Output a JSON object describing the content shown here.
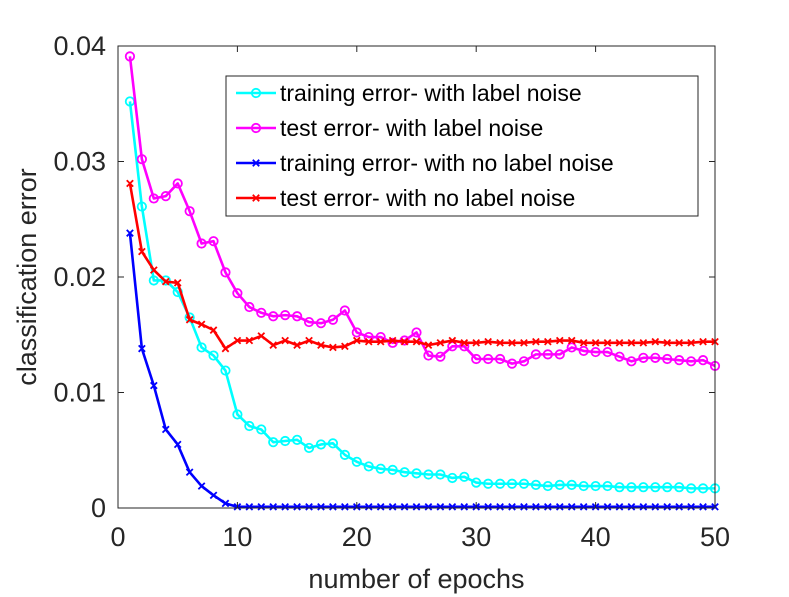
{
  "chart_data": {
    "type": "line",
    "xlabel": "number of epochs",
    "ylabel": "classification error",
    "xlim": [
      0,
      50
    ],
    "ylim": [
      0,
      0.04
    ],
    "xticks": [
      0,
      10,
      20,
      30,
      40,
      50
    ],
    "xtick_labels": [
      "0",
      "10",
      "20",
      "30",
      "40",
      "50"
    ],
    "yticks": [
      0,
      0.01,
      0.02,
      0.03,
      0.04
    ],
    "ytick_labels": [
      "0",
      "0.01",
      "0.02",
      "0.03",
      "0.04"
    ],
    "grid": false,
    "legend_position": "top-right",
    "x": [
      1,
      2,
      3,
      4,
      5,
      6,
      7,
      8,
      9,
      10,
      11,
      12,
      13,
      14,
      15,
      16,
      17,
      18,
      19,
      20,
      21,
      22,
      23,
      24,
      25,
      26,
      27,
      28,
      29,
      30,
      31,
      32,
      33,
      34,
      35,
      36,
      37,
      38,
      39,
      40,
      41,
      42,
      43,
      44,
      45,
      46,
      47,
      48,
      49,
      50
    ],
    "series": [
      {
        "name": "training error- with label noise",
        "color": "#00ffff",
        "marker": "circle",
        "values": [
          0.0352,
          0.0261,
          0.0197,
          0.0197,
          0.0187,
          0.0165,
          0.0139,
          0.0132,
          0.0119,
          0.0081,
          0.0071,
          0.0068,
          0.0057,
          0.0058,
          0.0059,
          0.0052,
          0.0055,
          0.0056,
          0.0046,
          0.004,
          0.0036,
          0.0034,
          0.0033,
          0.0031,
          0.003,
          0.0029,
          0.0029,
          0.0026,
          0.0027,
          0.0022,
          0.0021,
          0.0021,
          0.0021,
          0.0021,
          0.002,
          0.0019,
          0.002,
          0.002,
          0.0019,
          0.0019,
          0.0019,
          0.0018,
          0.0018,
          0.0018,
          0.0018,
          0.0018,
          0.0018,
          0.0017,
          0.0017,
          0.0017
        ]
      },
      {
        "name": "test error- with label noise",
        "color": "#ff00ff",
        "marker": "circle",
        "values": [
          0.0391,
          0.0302,
          0.0268,
          0.027,
          0.0281,
          0.0257,
          0.0229,
          0.0231,
          0.0204,
          0.0186,
          0.0174,
          0.0169,
          0.0166,
          0.0167,
          0.0166,
          0.0161,
          0.016,
          0.0163,
          0.0171,
          0.0152,
          0.0148,
          0.0148,
          0.0143,
          0.0145,
          0.0152,
          0.0132,
          0.0131,
          0.014,
          0.014,
          0.0129,
          0.0129,
          0.0129,
          0.0125,
          0.0127,
          0.0133,
          0.0133,
          0.0133,
          0.0139,
          0.0136,
          0.0135,
          0.0135,
          0.0131,
          0.0127,
          0.013,
          0.013,
          0.0129,
          0.0128,
          0.0127,
          0.0128,
          0.0123
        ]
      },
      {
        "name": "training error- with no label noise",
        "color": "#0000ff",
        "marker": "x",
        "values": [
          0.0238,
          0.0138,
          0.0106,
          0.0068,
          0.0055,
          0.0031,
          0.0019,
          0.0011,
          0.0004,
          0.0001,
          0.0001,
          0.0001,
          0.0001,
          0.0001,
          0.0001,
          0.0001,
          0.0001,
          0.0001,
          0.0001,
          0.0001,
          0.0001,
          0.0001,
          0.0001,
          0.0001,
          0.0001,
          0.0001,
          0.0001,
          0.0001,
          0.0001,
          0.0001,
          0.0001,
          0.0001,
          0.0001,
          0.0001,
          0.0001,
          0.0001,
          0.0001,
          0.0001,
          0.0001,
          0.0001,
          0.0001,
          0.0001,
          0.0001,
          0.0001,
          0.0001,
          0.0001,
          0.0001,
          0.0001,
          0.0001,
          0.0001
        ]
      },
      {
        "name": "test error- with no label noise",
        "color": "#ff0000",
        "marker": "x",
        "values": [
          0.0281,
          0.0222,
          0.0206,
          0.0196,
          0.0195,
          0.0163,
          0.0159,
          0.0154,
          0.0138,
          0.0145,
          0.0145,
          0.0149,
          0.0141,
          0.0145,
          0.0141,
          0.0145,
          0.0141,
          0.0139,
          0.014,
          0.0145,
          0.0144,
          0.0144,
          0.0145,
          0.0144,
          0.0144,
          0.0141,
          0.0143,
          0.0145,
          0.0143,
          0.0143,
          0.0144,
          0.0143,
          0.0143,
          0.0143,
          0.0144,
          0.0144,
          0.0145,
          0.0145,
          0.0143,
          0.0143,
          0.0143,
          0.0143,
          0.0143,
          0.0143,
          0.0144,
          0.0143,
          0.0143,
          0.0143,
          0.0144,
          0.0144
        ]
      }
    ]
  }
}
